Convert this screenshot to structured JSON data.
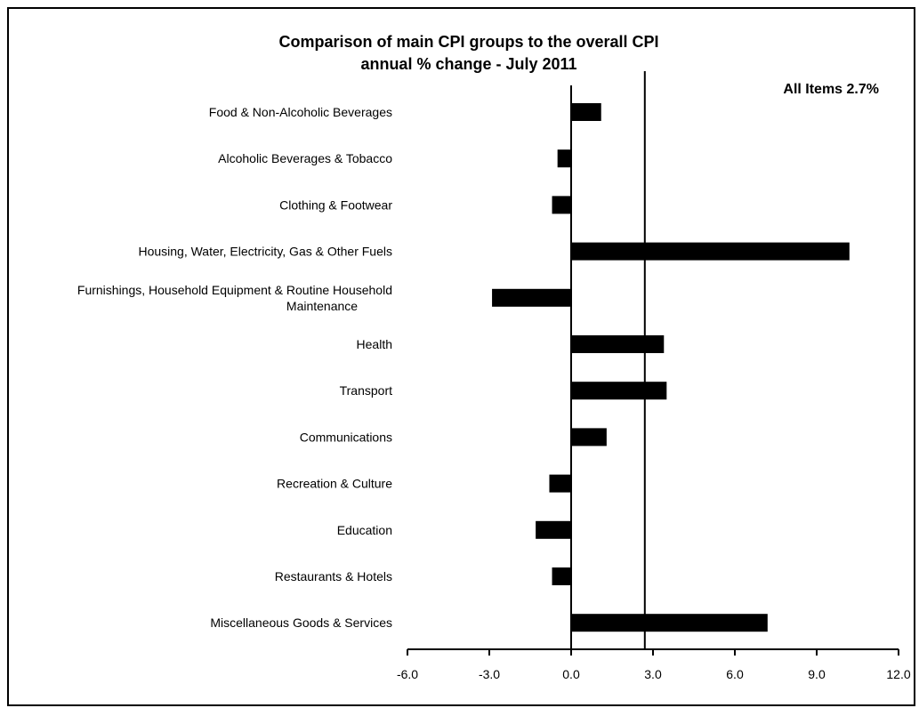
{
  "chart_data": {
    "type": "bar",
    "orientation": "horizontal",
    "title": "Comparison of main CPI groups to the overall CPI",
    "subtitle": "annual % change - July 2011",
    "annotation": "All Items  2.7%",
    "reference_line_value": 2.7,
    "categories": [
      "Food & Non-Alcoholic Beverages",
      "Alcoholic Beverages & Tobacco",
      "Clothing & Footwear",
      "Housing, Water, Electricity, Gas & Other Fuels",
      [
        "Furnishings, Household Equipment & Routine Household",
        "Maintenance"
      ],
      "Health",
      "Transport",
      "Communications",
      "Recreation & Culture",
      "Education",
      "Restaurants & Hotels",
      "Miscellaneous Goods & Services"
    ],
    "values": [
      1.1,
      -0.5,
      -0.7,
      10.2,
      -2.9,
      3.4,
      3.5,
      1.3,
      -0.8,
      -1.3,
      -0.7,
      7.2
    ],
    "xlim": [
      -6,
      12
    ],
    "xticks": [
      "-6.0",
      "-3.0",
      "0.0",
      "3.0",
      "6.0",
      "9.0",
      "12.0"
    ],
    "xtick_values": [
      -6,
      -3,
      0,
      3,
      6,
      9,
      12
    ],
    "bar_color": "#000000",
    "grid": false,
    "legend": "none"
  }
}
